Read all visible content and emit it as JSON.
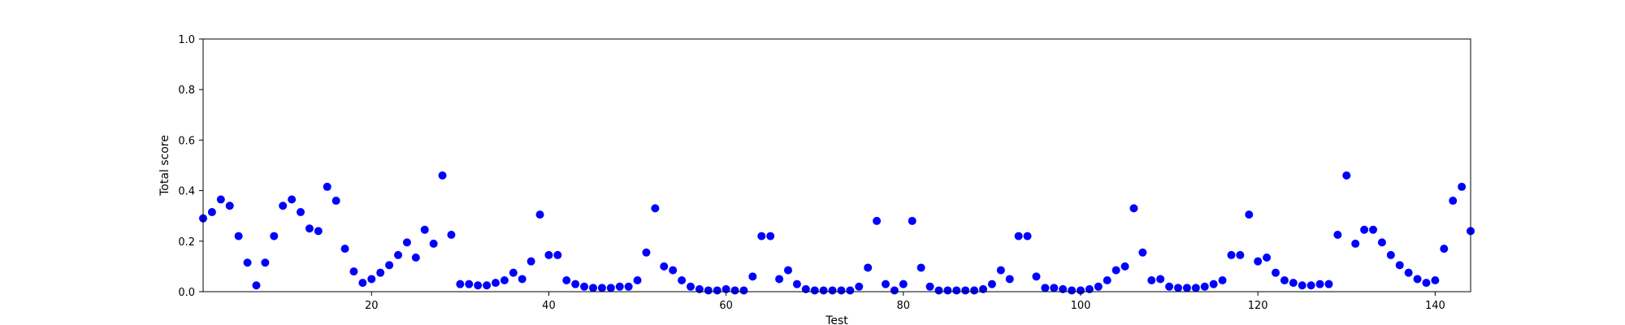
{
  "chart_data": {
    "type": "scatter",
    "title": "",
    "xlabel": "Test",
    "ylabel": "Total score",
    "xlim": [
      1,
      144
    ],
    "ylim": [
      0,
      1.0
    ],
    "xticks": [
      20,
      40,
      60,
      80,
      100,
      120,
      140
    ],
    "yticks": [
      0.0,
      0.2,
      0.4,
      0.6,
      0.8,
      1.0
    ],
    "xtick_labels": [
      "20",
      "40",
      "60",
      "80",
      "100",
      "120",
      "140"
    ],
    "ytick_labels": [
      "0.0",
      "0.2",
      "0.4",
      "0.6",
      "0.8",
      "1.0"
    ],
    "grid": false,
    "marker_color": "#0000ff",
    "series": [
      {
        "x": [
          1,
          2,
          3,
          4,
          5,
          6,
          7,
          8,
          9,
          10,
          11,
          12,
          13,
          14,
          15,
          16,
          17,
          18,
          19,
          20,
          21,
          22,
          23,
          24,
          25,
          26,
          27,
          28,
          29,
          30,
          31,
          32,
          33,
          34,
          35,
          36,
          37,
          38,
          39,
          40,
          41,
          42,
          43,
          44,
          45,
          46,
          47,
          48,
          49,
          50,
          51,
          52,
          53,
          54,
          55,
          56,
          57,
          58,
          59,
          60,
          61,
          62,
          63,
          64,
          65,
          66,
          67,
          68,
          69,
          70,
          71,
          72,
          73,
          74,
          75,
          76,
          77,
          78,
          79,
          80,
          81,
          82,
          83,
          84,
          85,
          86,
          87,
          88,
          89,
          90,
          91,
          92,
          93,
          94,
          95,
          96,
          97,
          98,
          99,
          100,
          101,
          102,
          103,
          104,
          105,
          106,
          107,
          108,
          109,
          110,
          111,
          112,
          113,
          114,
          115,
          116,
          117,
          118,
          119,
          120,
          121,
          122,
          123,
          124,
          125,
          126,
          127,
          128,
          129,
          130,
          131,
          132,
          133,
          134,
          135,
          136,
          137,
          138,
          139,
          140,
          141,
          142,
          143,
          144
        ],
        "y": [
          0.29,
          0.315,
          0.365,
          0.34,
          0.22,
          0.115,
          0.025,
          0.115,
          0.22,
          0.34,
          0.365,
          0.315,
          0.25,
          0.24,
          0.415,
          0.36,
          0.17,
          0.08,
          0.035,
          0.05,
          0.075,
          0.105,
          0.145,
          0.195,
          0.135,
          0.245,
          0.19,
          0.46,
          0.225,
          0.03,
          0.03,
          0.025,
          0.025,
          0.035,
          0.045,
          0.075,
          0.05,
          0.12,
          0.305,
          0.145,
          0.145,
          0.045,
          0.03,
          0.02,
          0.015,
          0.015,
          0.015,
          0.02,
          0.02,
          0.045,
          0.155,
          0.33,
          0.1,
          0.085,
          0.045,
          0.02,
          0.01,
          0.005,
          0.005,
          0.01,
          0.005,
          0.005,
          0.06,
          0.22,
          0.22,
          0.05,
          0.085,
          0.03,
          0.01,
          0.005,
          0.005,
          0.005,
          0.005,
          0.005,
          0.02,
          0.095,
          0.28,
          0.03,
          0.005,
          0.03,
          0.28,
          0.095,
          0.02,
          0.005,
          0.005,
          0.005,
          0.005,
          0.005,
          0.01,
          0.03,
          0.085,
          0.05,
          0.22,
          0.22,
          0.06,
          0.015,
          0.015,
          0.01,
          0.005,
          0.005,
          0.01,
          0.02,
          0.045,
          0.085,
          0.1,
          0.33,
          0.155,
          0.045,
          0.05,
          0.02,
          0.015,
          0.015,
          0.015,
          0.02,
          0.03,
          0.045,
          0.145,
          0.145,
          0.305,
          0.12,
          0.135,
          0.075,
          0.045,
          0.035,
          0.025,
          0.025,
          0.03,
          0.03,
          0.225,
          0.46,
          0.19,
          0.245,
          0.245,
          0.195,
          0.145,
          0.105,
          0.075,
          0.05,
          0.035,
          0.045,
          0.17,
          0.36,
          0.415,
          0.24
        ]
      }
    ]
  }
}
